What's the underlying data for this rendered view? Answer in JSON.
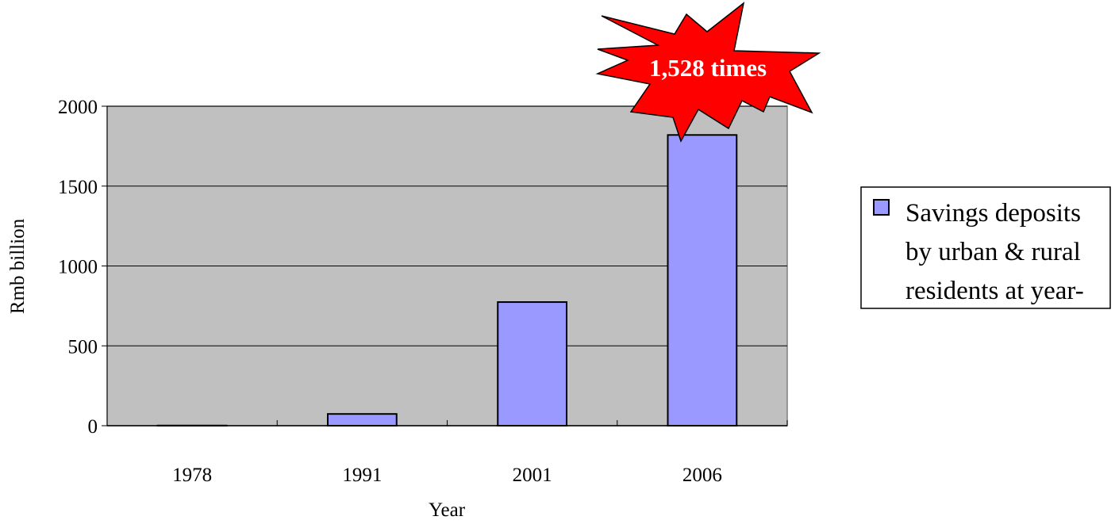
{
  "chart_data": {
    "type": "bar",
    "categories": [
      "1978",
      "1991",
      "2001",
      "2006"
    ],
    "series": [
      {
        "name": "Savings deposits by urban & rural residents at year-",
        "name_lines": [
          "Savings deposits",
          "by urban & rural",
          "residents at year-"
        ],
        "values": [
          1.06,
          73.5,
          774,
          1820
        ]
      }
    ],
    "xlabel": "Year",
    "ylabel": "Rmb billion",
    "ylim": [
      0,
      2000
    ],
    "yticks": [
      0,
      500,
      1000,
      1500,
      2000
    ],
    "grid": true,
    "legend_position": "right",
    "annotation": "1,528 times",
    "colors": {
      "plot_bg": "#c0c0c0",
      "bar_fill": "#9999ff",
      "bar_stroke": "#000000",
      "burst_fill": "#ff0000",
      "burst_text": "#ffffff"
    }
  }
}
